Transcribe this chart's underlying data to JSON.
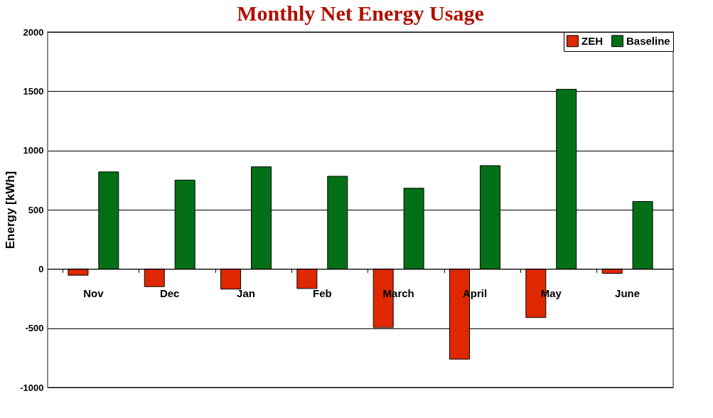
{
  "chart_data": {
    "type": "bar",
    "title": "Monthly Net Energy Usage",
    "ylabel": "Energy [kWh]",
    "categories": [
      "Nov",
      "Dec",
      "Jan",
      "Feb",
      "March",
      "April",
      "May",
      "June"
    ],
    "series": [
      {
        "name": "ZEH",
        "color": "#e02800",
        "values": [
          -53,
          -149,
          -170,
          -165,
          -495,
          -761,
          -410,
          -37
        ]
      },
      {
        "name": "Baseline",
        "color": "#037017",
        "values": [
          819,
          750,
          862,
          782,
          681,
          872,
          1516,
          569
        ]
      }
    ],
    "ylim": [
      -1000,
      2000
    ],
    "yticks": [
      -1000,
      -500,
      0,
      500,
      1000,
      1500,
      2000
    ],
    "grid": "y",
    "legend": "top right"
  }
}
